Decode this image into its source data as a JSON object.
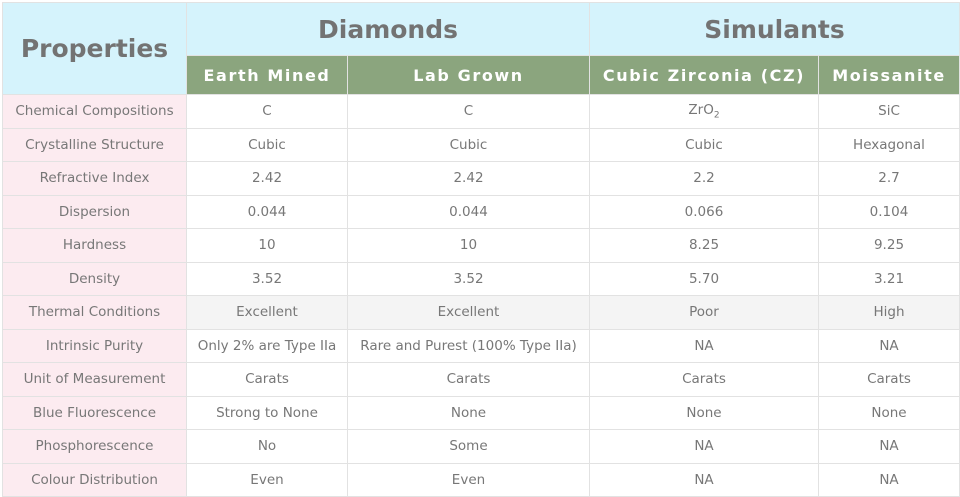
{
  "header": {
    "properties": "Properties",
    "groups": [
      "Diamonds",
      "Simulants"
    ],
    "columns": [
      "Earth Mined",
      "Lab Grown",
      "Cubic Zirconia (CZ)",
      "Moissanite"
    ]
  },
  "rows": [
    {
      "property": "Chemical Compositions",
      "values": [
        "C",
        "C",
        "ZrO",
        "SiC"
      ],
      "cz_subscript": "2"
    },
    {
      "property": "Crystalline Structure",
      "values": [
        "Cubic",
        "Cubic",
        "Cubic",
        "Hexagonal"
      ]
    },
    {
      "property": "Refractive Index",
      "values": [
        "2.42",
        "2.42",
        "2.2",
        "2.7"
      ]
    },
    {
      "property": "Dispersion",
      "values": [
        "0.044",
        "0.044",
        "0.066",
        "0.104"
      ]
    },
    {
      "property": "Hardness",
      "values": [
        "10",
        "10",
        "8.25",
        "9.25"
      ]
    },
    {
      "property": "Density",
      "values": [
        "3.52",
        "3.52",
        "5.70",
        "3.21"
      ]
    },
    {
      "property": "Thermal Conditions",
      "values": [
        "Excellent",
        "Excellent",
        "Poor",
        "High"
      ]
    },
    {
      "property": "Intrinsic Purity",
      "values": [
        "Only 2% are Type IIa",
        "Rare and Purest (100% Type IIa)",
        "NA",
        "NA"
      ]
    },
    {
      "property": "Unit of Measurement",
      "values": [
        "Carats",
        "Carats",
        "Carats",
        "Carats"
      ]
    },
    {
      "property": "Blue Fluorescence",
      "values": [
        "Strong to None",
        "None",
        "None",
        "None"
      ]
    },
    {
      "property": "Phosphorescence",
      "values": [
        "No",
        "Some",
        "NA",
        "NA"
      ]
    },
    {
      "property": "Colour Distribution",
      "values": [
        "Even",
        "Even",
        "NA",
        "NA"
      ]
    }
  ],
  "colors": {
    "header_bg": "#d5f3fc",
    "subheader_bg": "#8ba57e",
    "property_bg": "#fcebf0",
    "text": "#777777"
  }
}
